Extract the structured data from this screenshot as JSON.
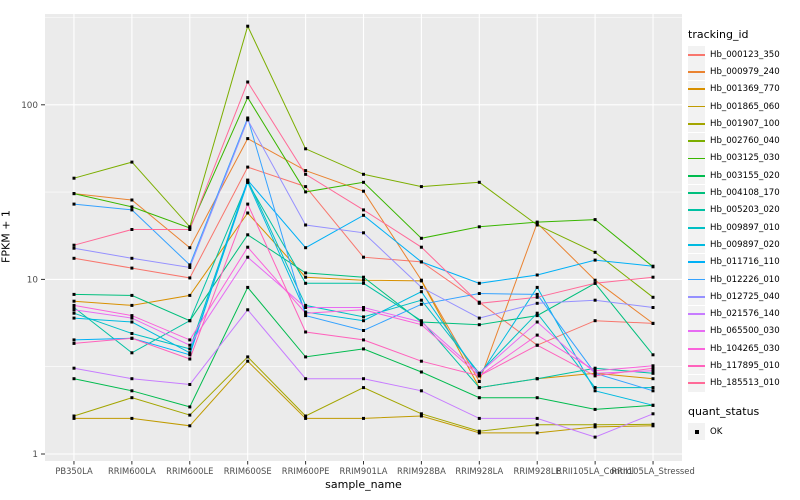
{
  "chart_data": {
    "type": "line",
    "title": "",
    "xlabel": "sample_name",
    "ylabel": "FPKM + 1",
    "y_scale": "log10",
    "y_ticks": [
      1,
      10,
      100
    ],
    "y_minor_gridlines": [
      3.162,
      31.62,
      316.2
    ],
    "ylim": [
      0.91,
      331
    ],
    "grid": "major-and-minor-horizontal-plus-major-vertical",
    "panel_background": "#EBEBEB",
    "gridline_color": "#FFFFFF",
    "axis_text_color": "#4D4D4D",
    "point_shape": "filled-square",
    "point_color": "#000000",
    "key_background": "#F2F2F2",
    "categories": [
      "PB350LA",
      "RRIM600LA",
      "RRIM600LE",
      "RRIM600SE",
      "RRIM600PE",
      "RRIM901LA",
      "RRIM928BA",
      "RRIM928LA",
      "RRIM928LE",
      "RRII105LA_Control",
      "RRII105LA_Stressed"
    ],
    "series": [
      {
        "name": "Hb_000123_350",
        "color": "#F8766D",
        "values": [
          13.2,
          11.6,
          10.2,
          44,
          34,
          13.4,
          12.6,
          7.4,
          4.2,
          5.8,
          5.6
        ]
      },
      {
        "name": "Hb_000979_240",
        "color": "#EA8331",
        "values": [
          31,
          28.5,
          15.2,
          64,
          42,
          32,
          9.9,
          2.6,
          21,
          9.9,
          5.6
        ]
      },
      {
        "name": "Hb_001369_770",
        "color": "#D89000",
        "values": [
          7.5,
          7.1,
          8.1,
          24,
          10.3,
          9.9,
          9.8,
          2.4,
          2.7,
          2.9,
          2.7
        ]
      },
      {
        "name": "Hb_001865_060",
        "color": "#C09B00",
        "values": [
          1.6,
          1.6,
          1.45,
          3.4,
          1.6,
          1.6,
          1.65,
          1.32,
          1.32,
          1.43,
          1.45
        ]
      },
      {
        "name": "Hb_001907_100",
        "color": "#A3A500",
        "values": [
          1.65,
          2.1,
          1.67,
          3.6,
          1.65,
          2.4,
          1.7,
          1.35,
          1.47,
          1.47,
          1.48
        ]
      },
      {
        "name": "Hb_002760_040",
        "color": "#7CAE00",
        "values": [
          38,
          47,
          20,
          282,
          56,
          40,
          34,
          36,
          20.5,
          14.3,
          7.9
        ]
      },
      {
        "name": "Hb_003125_030",
        "color": "#39B600",
        "values": [
          31,
          26,
          19.7,
          110,
          31.7,
          36,
          17.2,
          20,
          21.3,
          22,
          11.8
        ]
      },
      {
        "name": "Hb_003155_020",
        "color": "#00BB4E",
        "values": [
          2.7,
          2.3,
          1.86,
          9.0,
          3.6,
          4.0,
          2.95,
          2.1,
          2.1,
          1.8,
          1.9
        ]
      },
      {
        "name": "Hb_004108_170",
        "color": "#00BF7D",
        "values": [
          8.2,
          8.1,
          5.8,
          18,
          10.9,
          10.3,
          5.7,
          5.5,
          6.2,
          9.5,
          3.7
        ]
      },
      {
        "name": "Hb_005203_020",
        "color": "#00C1A3",
        "values": [
          6.9,
          3.8,
          5.8,
          36,
          9.5,
          9.5,
          5.8,
          2.4,
          2.7,
          3.1,
          2.9
        ]
      },
      {
        "name": "Hb_009897_010",
        "color": "#00BFC4",
        "values": [
          6.4,
          4.9,
          4.0,
          37,
          7.1,
          6.1,
          7.6,
          2.9,
          6.4,
          2.4,
          2.4
        ]
      },
      {
        "name": "Hb_009897_020",
        "color": "#00BAE0",
        "values": [
          6.0,
          5.7,
          3.8,
          36,
          6.5,
          5.8,
          8.5,
          2.8,
          9.0,
          2.3,
          1.9
        ]
      },
      {
        "name": "Hb_011716_110",
        "color": "#00B0F6",
        "values": [
          4.5,
          4.6,
          3.7,
          37,
          15.2,
          23.3,
          12.6,
          9.5,
          10.6,
          12.9,
          11.9
        ]
      },
      {
        "name": "Hb_012226_010",
        "color": "#35A2FF",
        "values": [
          27,
          25,
          12.1,
          84,
          6.2,
          5.1,
          7.2,
          8.3,
          8.2,
          2.9,
          2.3
        ]
      },
      {
        "name": "Hb_012725_040",
        "color": "#9590FF",
        "values": [
          15.1,
          13.2,
          11.7,
          82,
          20.5,
          18.5,
          9.0,
          6.0,
          7.3,
          7.6,
          6.9
        ]
      },
      {
        "name": "Hb_021576_140",
        "color": "#C77CFF",
        "values": [
          3.1,
          2.7,
          2.5,
          6.7,
          2.7,
          2.7,
          2.3,
          1.6,
          1.6,
          1.25,
          1.7
        ]
      },
      {
        "name": "Hb_065500_030",
        "color": "#E76BF3",
        "values": [
          6.7,
          6.0,
          4.2,
          13.4,
          6.9,
          6.9,
          5.7,
          2.9,
          5.7,
          2.9,
          3.0
        ]
      },
      {
        "name": "Hb_104265_030",
        "color": "#FA62DB",
        "values": [
          7.1,
          6.2,
          4.5,
          15.3,
          6.4,
          6.7,
          5.5,
          2.8,
          4.8,
          3.0,
          3.2
        ]
      },
      {
        "name": "Hb_117895_010",
        "color": "#FF62BC",
        "values": [
          4.3,
          4.6,
          3.5,
          27,
          5.0,
          4.5,
          3.4,
          2.8,
          4.2,
          2.8,
          3.1
        ]
      },
      {
        "name": "Hb_185513_010",
        "color": "#FF6A98",
        "values": [
          15.7,
          19.3,
          19.3,
          135,
          40,
          25,
          15.3,
          7.3,
          7.9,
          9.5,
          10.3
        ]
      }
    ],
    "legend": {
      "position": "right",
      "color_legend_title": "tracking_id",
      "shape_legend_title": "quant_status",
      "shape_entries": [
        "OK"
      ]
    }
  }
}
